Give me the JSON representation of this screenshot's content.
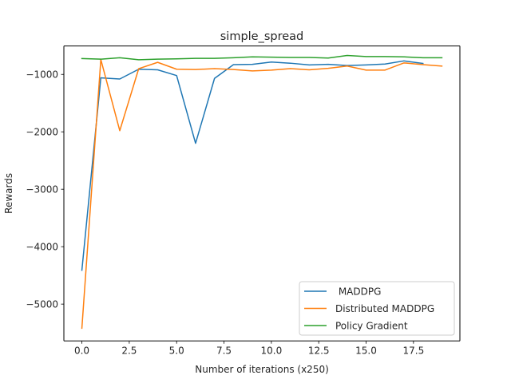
{
  "chart_data": {
    "type": "line",
    "title": "simple_spread",
    "xlabel": "Number of iterations (x250)",
    "ylabel": "Rewards",
    "xlim": [
      -0.95,
      19.95
    ],
    "ylim": [
      -5640,
      -505
    ],
    "xticks": [
      0.0,
      2.5,
      5.0,
      7.5,
      10.0,
      12.5,
      15.0,
      17.5
    ],
    "xtick_labels": [
      "0.0",
      "2.5",
      "5.0",
      "7.5",
      "10.0",
      "12.5",
      "15.0",
      "17.5"
    ],
    "yticks": [
      -5000,
      -4000,
      -3000,
      -2000,
      -1000
    ],
    "ytick_labels": [
      "−5000",
      "−4000",
      "−3000",
      "−2000",
      "−1000"
    ],
    "grid": false,
    "legend": "lower-right",
    "series": [
      {
        "name": " MADDPG",
        "color": "#1f77b4",
        "x": [
          0,
          1,
          2,
          3,
          4,
          5,
          6,
          7,
          8,
          9,
          10,
          11,
          12,
          13,
          14,
          15,
          16,
          17,
          18
        ],
        "y": [
          -4410,
          -1060,
          -1080,
          -910,
          -920,
          -1020,
          -2200,
          -1070,
          -830,
          -825,
          -785,
          -805,
          -835,
          -825,
          -845,
          -835,
          -820,
          -765,
          -810
        ]
      },
      {
        "name": "Distributed MADDPG",
        "color": "#ff7f0e",
        "x": [
          0,
          1,
          2,
          3,
          4,
          5,
          6,
          7,
          8,
          9,
          10,
          11,
          12,
          13,
          14,
          15,
          16,
          17,
          18,
          19
        ],
        "y": [
          -5420,
          -740,
          -1980,
          -900,
          -790,
          -910,
          -915,
          -900,
          -915,
          -940,
          -925,
          -900,
          -920,
          -895,
          -855,
          -925,
          -925,
          -800,
          -830,
          -855
        ]
      },
      {
        "name": "Policy Gradient",
        "color": "#2ca02c",
        "x": [
          0,
          1,
          2,
          3,
          4,
          5,
          6,
          7,
          8,
          9,
          10,
          11,
          12,
          13,
          14,
          15,
          16,
          17,
          18,
          19
        ],
        "y": [
          -725,
          -735,
          -710,
          -745,
          -735,
          -730,
          -720,
          -720,
          -710,
          -695,
          -700,
          -705,
          -705,
          -715,
          -670,
          -690,
          -690,
          -695,
          -710,
          -710
        ]
      }
    ]
  }
}
